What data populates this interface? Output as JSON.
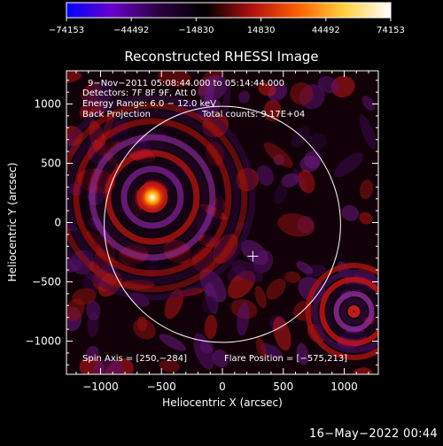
{
  "chart_data": {
    "type": "heatmap",
    "title": "Reconstructed RHESSI Image",
    "xlabel": "Heliocentric X (arcsec)",
    "ylabel": "Heliocentric Y (arcsec)",
    "xlim": [
      -1280,
      1280
    ],
    "ylim": [
      -1280,
      1280
    ],
    "x_ticks": [
      -1000,
      -500,
      0,
      500,
      1000
    ],
    "y_ticks": [
      -1000,
      -500,
      0,
      500,
      1000
    ],
    "x_tick_labels": [
      "−1000",
      "−500",
      "0",
      "500",
      "1000"
    ],
    "y_tick_labels": [
      "−1000",
      "−500",
      "0",
      "500",
      "1000"
    ],
    "colorbar": {
      "tick_labels": [
        "−74153",
        "−44492",
        "−14830",
        "14830",
        "44492",
        "74153"
      ],
      "range": [
        -74153,
        74153
      ],
      "colors": [
        "#0000ff",
        "#6a00c8",
        "#2a0040",
        "#000000",
        "#b01010",
        "#ff6000",
        "#ffd040",
        "#ffffff"
      ]
    },
    "annotations": {
      "time_range": "9−Nov−2011 05:08:44.000 to 05:14:44.000",
      "detectors": "Detectors: 7F 8F 9F, Att 0",
      "energy": "Energy Range: 6.0 − 12.0 keV",
      "method": "Back Projection",
      "total_counts": "Total counts: 9.17E+04",
      "spin_axis": "Spin Axis = [250,−284]",
      "flare_position": "Flare Position = [−575,213]"
    },
    "solar_disk": {
      "center": [
        0,
        -15
      ],
      "radius": 970
    },
    "spin_axis_marker": [
      250,
      -284
    ],
    "source": {
      "x": -575,
      "y": 213,
      "peak": 74153
    },
    "secondary_ring": {
      "x": 1080,
      "y": -750
    }
  },
  "footer": {
    "timestamp": "16−May−2022 00:44"
  }
}
